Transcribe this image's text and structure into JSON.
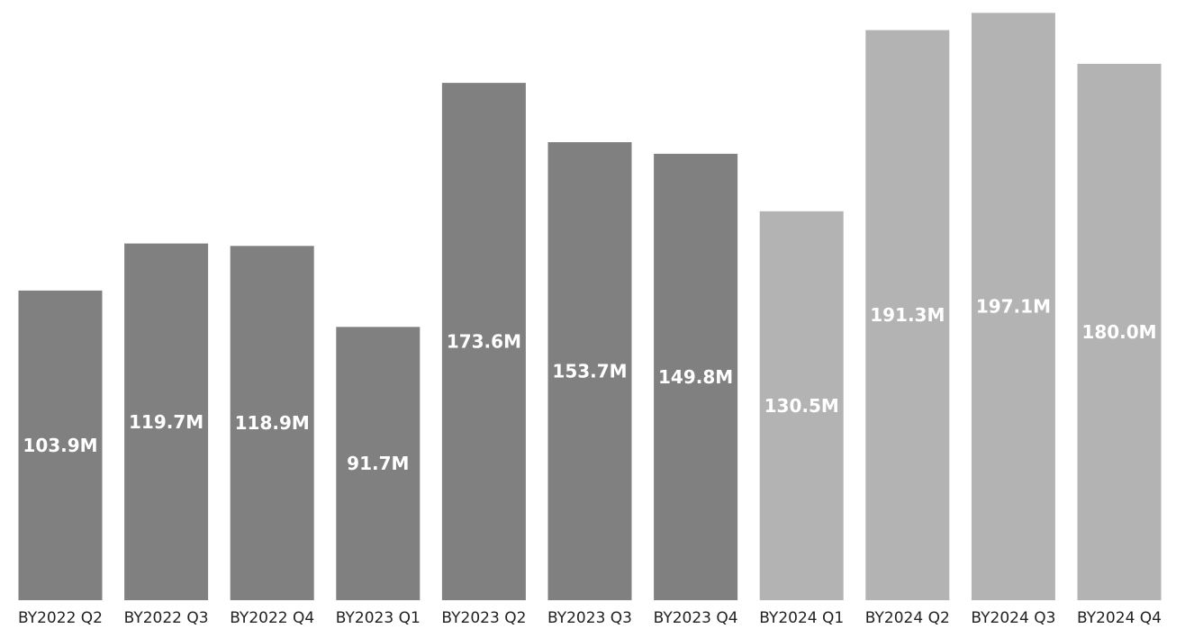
{
  "chart_data": {
    "type": "bar",
    "title": "",
    "xlabel": "",
    "ylabel": "",
    "categories": [
      "BY2022 Q2",
      "BY2022 Q3",
      "BY2022 Q4",
      "BY2023 Q1",
      "BY2023 Q2",
      "BY2023 Q3",
      "BY2023 Q4",
      "BY2024 Q1",
      "BY2024 Q2",
      "BY2024 Q3",
      "BY2024 Q4"
    ],
    "values": [
      103.9,
      119.7,
      118.9,
      91.7,
      173.6,
      153.7,
      149.8,
      130.5,
      191.3,
      197.1,
      180.0
    ],
    "data_labels": [
      "103.9M",
      "119.7M",
      "118.9M",
      "91.7M",
      "173.6M",
      "153.7M",
      "149.8M",
      "130.5M",
      "191.3M",
      "197.1M",
      "180.0M"
    ],
    "ylim": [
      0,
      199
    ],
    "grid": false,
    "legend": "none",
    "colors": [
      "#808080",
      "#808080",
      "#808080",
      "#808080",
      "#808080",
      "#808080",
      "#808080",
      "#b3b3b3",
      "#b3b3b3",
      "#b3b3b3",
      "#b3b3b3"
    ]
  }
}
